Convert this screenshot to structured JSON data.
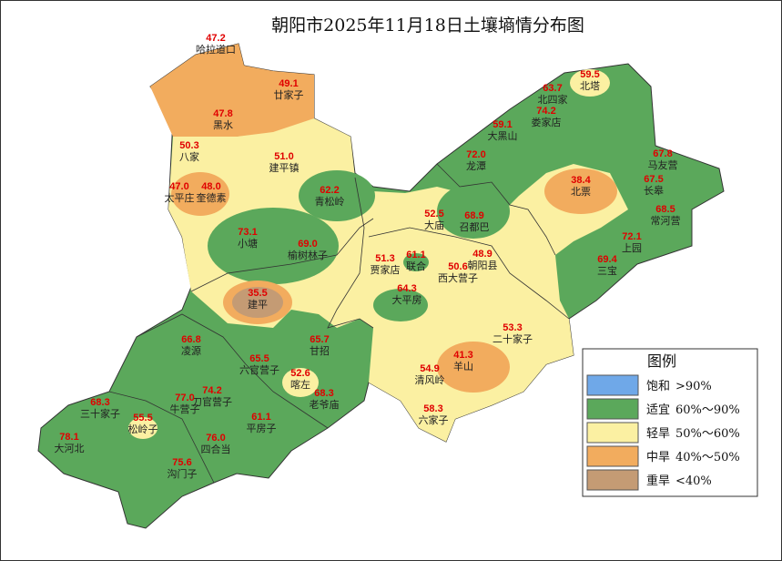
{
  "title": "朝阳市2025年11月18日土壤墒情分布图",
  "stations": [
    {
      "value": "47.2",
      "name": "哈拉道口"
    },
    {
      "value": "49.1",
      "name": "廿家子"
    },
    {
      "value": "47.8",
      "name": "黑水"
    },
    {
      "value": "50.3",
      "name": "八家"
    },
    {
      "value": "51.0",
      "name": "建平镇"
    },
    {
      "value": "47.0",
      "name": "太平庄"
    },
    {
      "value": "48.0",
      "name": "奎德素"
    },
    {
      "value": "62.2",
      "name": "青松岭"
    },
    {
      "value": "73.1",
      "name": "小塘"
    },
    {
      "value": "69.0",
      "name": "榆树林子"
    },
    {
      "value": "35.5",
      "name": "建平"
    },
    {
      "value": "66.8",
      "name": "凌源"
    },
    {
      "value": "65.5",
      "name": "六官营子"
    },
    {
      "value": "65.7",
      "name": "甘招"
    },
    {
      "value": "52.6",
      "name": "喀左"
    },
    {
      "value": "68.3",
      "name": "老爷庙"
    },
    {
      "value": "74.2",
      "name": "刀官营子"
    },
    {
      "value": "77.0",
      "name": "牛营子"
    },
    {
      "value": "68.3",
      "name": "三十家子"
    },
    {
      "value": "55.5",
      "name": "松岭子"
    },
    {
      "value": "61.1",
      "name": "平房子"
    },
    {
      "value": "78.1",
      "name": "大河北"
    },
    {
      "value": "76.0",
      "name": "四合当"
    },
    {
      "value": "75.6",
      "name": "沟门子"
    },
    {
      "value": "59.5",
      "name": "北塔"
    },
    {
      "value": "63.7",
      "name": "北四家"
    },
    {
      "value": "74.2",
      "name": "娄家店"
    },
    {
      "value": "59.1",
      "name": "大黑山"
    },
    {
      "value": "72.0",
      "name": "龙潭"
    },
    {
      "value": "67.8",
      "name": "马友营"
    },
    {
      "value": "38.4",
      "name": "北票"
    },
    {
      "value": "67.5",
      "name": "长皋"
    },
    {
      "value": "68.5",
      "name": "常河营"
    },
    {
      "value": "52.5",
      "name": "大庙"
    },
    {
      "value": "68.9",
      "name": "召都巴"
    },
    {
      "value": "72.1",
      "name": "上园"
    },
    {
      "value": "69.4",
      "name": "三宝"
    },
    {
      "value": "48.9",
      "name": "朝阳县"
    },
    {
      "value": "51.3",
      "name": "贾家店"
    },
    {
      "value": "61.1",
      "name": "联合"
    },
    {
      "value": "50.6",
      "name": "西大营子"
    },
    {
      "value": "64.3",
      "name": "大平房"
    },
    {
      "value": "53.3",
      "name": "二十家子"
    },
    {
      "value": "41.3",
      "name": "羊山"
    },
    {
      "value": "54.9",
      "name": "清风岭"
    },
    {
      "value": "58.3",
      "name": "六家子"
    }
  ],
  "legend": {
    "title": "图例",
    "items": [
      {
        "label": "饱和",
        "range": ">90%",
        "color": "#6fa8e8"
      },
      {
        "label": "适宜",
        "range": "60%～90%",
        "color": "#5ba85b"
      },
      {
        "label": "轻旱",
        "range": "50%～60%",
        "color": "#fbf0a2"
      },
      {
        "label": "中旱",
        "range": "40%～50%",
        "color": "#f2ac5e"
      },
      {
        "label": "重旱",
        "range": "<40%",
        "color": "#c49b74"
      }
    ]
  }
}
